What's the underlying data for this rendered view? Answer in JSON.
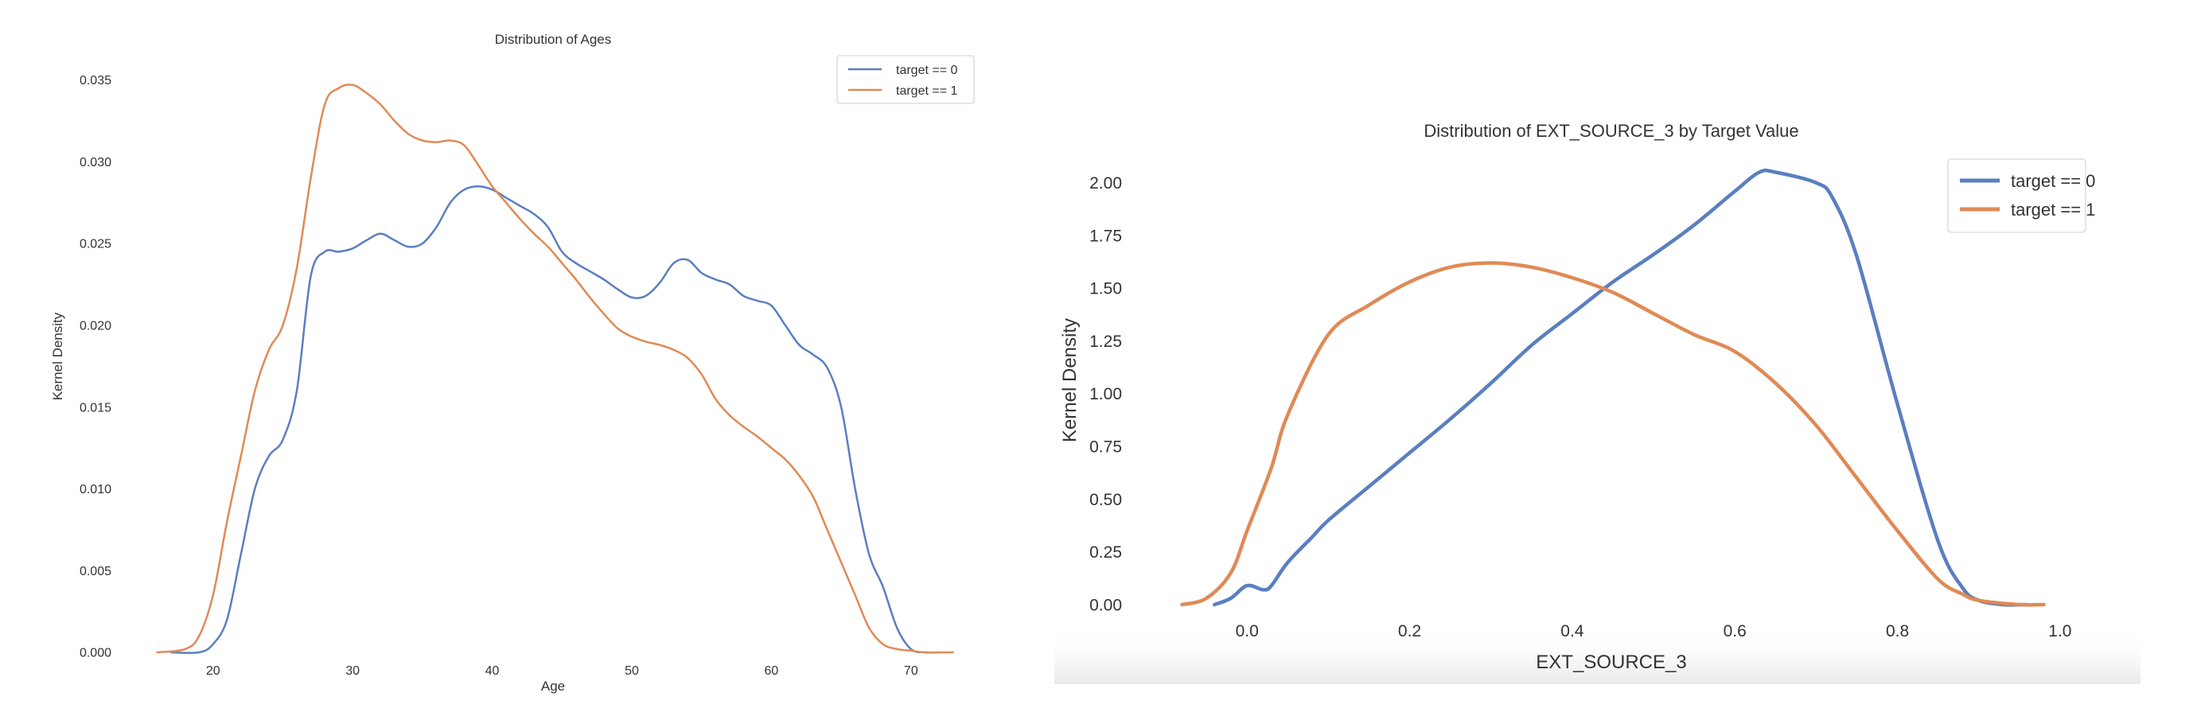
{
  "chart_data": [
    {
      "type": "line",
      "title": "Distribution of Ages",
      "xlabel": "Age",
      "ylabel": "Kernel Density",
      "xlim": [
        15,
        74
      ],
      "ylim": [
        0,
        0.036
      ],
      "xticks": [
        20,
        30,
        40,
        50,
        60,
        70
      ],
      "yticks": [
        0.0,
        0.005,
        0.01,
        0.015,
        0.02,
        0.025,
        0.03,
        0.035
      ],
      "ytick_decimals": 3,
      "xtick_decimals": 0,
      "grid": false,
      "legend": "top-right",
      "series": [
        {
          "name": "target == 0",
          "color": "#5a7fc0",
          "x": [
            17,
            19,
            20,
            21,
            22,
            23,
            24,
            25,
            26,
            27,
            28,
            29,
            30,
            31,
            32,
            33,
            34,
            35,
            36,
            37,
            38,
            39,
            40,
            41,
            42,
            43,
            44,
            45,
            46,
            47,
            48,
            49,
            50,
            51,
            52,
            53,
            54,
            55,
            56,
            57,
            58,
            59,
            60,
            61,
            62,
            63,
            64,
            65,
            66,
            67,
            68,
            69,
            70,
            71,
            72
          ],
          "y": [
            0.0,
            0.0,
            0.0005,
            0.002,
            0.006,
            0.01,
            0.012,
            0.013,
            0.016,
            0.023,
            0.0245,
            0.0245,
            0.0247,
            0.0252,
            0.0256,
            0.0252,
            0.0248,
            0.025,
            0.026,
            0.0275,
            0.0283,
            0.0285,
            0.0283,
            0.0278,
            0.0273,
            0.0268,
            0.026,
            0.0245,
            0.0238,
            0.0233,
            0.0228,
            0.0222,
            0.0217,
            0.0218,
            0.0226,
            0.0238,
            0.024,
            0.0232,
            0.0228,
            0.0225,
            0.0218,
            0.0215,
            0.0212,
            0.02,
            0.0188,
            0.0182,
            0.0174,
            0.015,
            0.01,
            0.006,
            0.004,
            0.0015,
            0.0002,
            0.0,
            0.0
          ]
        },
        {
          "name": "target == 1",
          "color": "#e08a55",
          "x": [
            16,
            18,
            19,
            20,
            21,
            22,
            23,
            24,
            25,
            26,
            27,
            28,
            29,
            30,
            31,
            32,
            33,
            34,
            35,
            36,
            37,
            38,
            39,
            40,
            41,
            42,
            43,
            44,
            45,
            46,
            47,
            48,
            49,
            50,
            51,
            52,
            53,
            54,
            55,
            56,
            57,
            58,
            59,
            60,
            61,
            62,
            63,
            64,
            65,
            66,
            67,
            68,
            69,
            70,
            71,
            73
          ],
          "y": [
            0.0,
            0.0002,
            0.001,
            0.0035,
            0.008,
            0.012,
            0.016,
            0.0185,
            0.02,
            0.0235,
            0.029,
            0.0335,
            0.0345,
            0.0347,
            0.0342,
            0.0335,
            0.0325,
            0.0317,
            0.0313,
            0.0312,
            0.0313,
            0.031,
            0.0298,
            0.0285,
            0.0275,
            0.0265,
            0.0256,
            0.0248,
            0.0238,
            0.0228,
            0.0217,
            0.0207,
            0.0198,
            0.0193,
            0.019,
            0.0188,
            0.0185,
            0.018,
            0.017,
            0.0155,
            0.0145,
            0.0138,
            0.0132,
            0.0125,
            0.0118,
            0.0108,
            0.0095,
            0.0075,
            0.0055,
            0.0035,
            0.0015,
            0.0005,
            0.0002,
            0.0001,
            0.0,
            0.0
          ]
        }
      ]
    },
    {
      "type": "line",
      "title": "Distribution of EXT_SOURCE_3 by Target Value",
      "xlabel": "EXT_SOURCE_3",
      "ylabel": "Kernel Density",
      "xlim": [
        -0.1,
        1.05
      ],
      "ylim": [
        0,
        2.15
      ],
      "xticks": [
        0.0,
        0.2,
        0.4,
        0.6,
        0.8,
        1.0
      ],
      "yticks": [
        0.0,
        0.25,
        0.5,
        0.75,
        1.0,
        1.25,
        1.5,
        1.75,
        2.0
      ],
      "ytick_decimals": 2,
      "xtick_decimals": 1,
      "grid": false,
      "legend": "top-right",
      "series": [
        {
          "name": "target == 0",
          "color": "#5a7fc0",
          "x": [
            -0.04,
            -0.02,
            0.0,
            0.02,
            0.03,
            0.05,
            0.08,
            0.1,
            0.15,
            0.2,
            0.25,
            0.3,
            0.35,
            0.4,
            0.45,
            0.5,
            0.55,
            0.6,
            0.63,
            0.65,
            0.7,
            0.72,
            0.75,
            0.8,
            0.85,
            0.88,
            0.9,
            0.93,
            0.96
          ],
          "y": [
            0.0,
            0.03,
            0.09,
            0.07,
            0.09,
            0.2,
            0.32,
            0.4,
            0.56,
            0.72,
            0.88,
            1.05,
            1.23,
            1.38,
            1.53,
            1.66,
            1.8,
            1.96,
            2.05,
            2.05,
            2.0,
            1.93,
            1.65,
            0.95,
            0.3,
            0.08,
            0.02,
            0.0,
            0.0
          ]
        },
        {
          "name": "target == 1",
          "color": "#e08a55",
          "x": [
            -0.08,
            -0.05,
            -0.02,
            0.0,
            0.03,
            0.05,
            0.1,
            0.15,
            0.2,
            0.25,
            0.3,
            0.35,
            0.4,
            0.45,
            0.5,
            0.55,
            0.6,
            0.65,
            0.7,
            0.75,
            0.8,
            0.85,
            0.88,
            0.9,
            0.95,
            0.98
          ],
          "y": [
            0.0,
            0.03,
            0.15,
            0.35,
            0.65,
            0.9,
            1.28,
            1.42,
            1.53,
            1.6,
            1.62,
            1.6,
            1.55,
            1.48,
            1.38,
            1.28,
            1.2,
            1.05,
            0.85,
            0.6,
            0.35,
            0.12,
            0.05,
            0.02,
            0.0,
            0.0
          ]
        }
      ]
    }
  ]
}
